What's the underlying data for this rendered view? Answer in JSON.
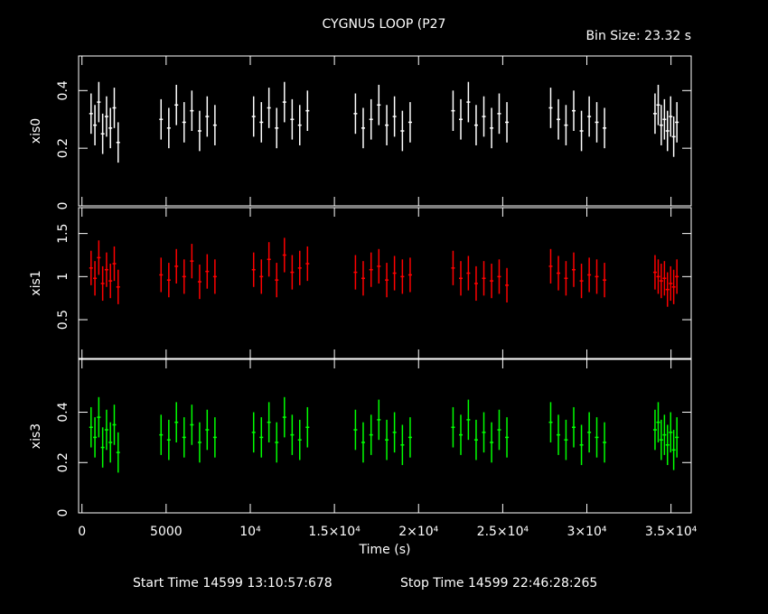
{
  "chart_data": {
    "type": "errorbar",
    "title": "CYGNUS LOOP (P27",
    "annotation": "Bin Size: 23.32 s",
    "xlabel": "Time (s)",
    "start_time": "Start Time 14599 13:10:57:678",
    "stop_time": "Stop Time 14599 22:46:28:265",
    "xlim": [
      -200,
      36200
    ],
    "xticks": [
      0,
      5000,
      {
        "value": 10000,
        "label": "10⁴"
      },
      {
        "value": 15000,
        "label": "1.5×10⁴"
      },
      {
        "value": 20000,
        "label": "2×10⁴"
      },
      {
        "value": 25000,
        "label": "2.5×10⁴"
      },
      {
        "value": 30000,
        "label": "3×10⁴"
      },
      {
        "value": 35000,
        "label": "3.5×10⁴"
      }
    ],
    "x": [
      540,
      770,
      1000,
      1230,
      1460,
      1690,
      1920,
      2150,
      4700,
      5160,
      5610,
      6070,
      6530,
      6990,
      7440,
      7900,
      10200,
      10660,
      11110,
      11570,
      12030,
      12490,
      12940,
      13400,
      16250,
      16710,
      17180,
      17640,
      18110,
      18570,
      19040,
      19500,
      22050,
      22510,
      22960,
      23420,
      23880,
      24340,
      24790,
      25250,
      27850,
      28310,
      28760,
      29220,
      29680,
      30140,
      30590,
      31050,
      34050,
      34240,
      34420,
      34610,
      34790,
      34980,
      35160,
      35350
    ],
    "panels": [
      {
        "ylabel": "xis0",
        "color": "#ffffff",
        "ylim": [
          0,
          0.52
        ],
        "yticks": [
          0,
          0.2,
          0.4
        ],
        "error": 0.07,
        "values": [
          0.32,
          0.28,
          0.36,
          0.25,
          0.31,
          0.27,
          0.34,
          0.22,
          0.3,
          0.27,
          0.35,
          0.29,
          0.33,
          0.26,
          0.31,
          0.28,
          0.31,
          0.29,
          0.34,
          0.27,
          0.36,
          0.3,
          0.28,
          0.33,
          0.32,
          0.27,
          0.3,
          0.35,
          0.28,
          0.31,
          0.26,
          0.29,
          0.33,
          0.3,
          0.36,
          0.28,
          0.31,
          0.27,
          0.32,
          0.29,
          0.34,
          0.3,
          0.28,
          0.33,
          0.26,
          0.31,
          0.29,
          0.27,
          0.32,
          0.35,
          0.28,
          0.3,
          0.26,
          0.31,
          0.24,
          0.29
        ]
      },
      {
        "ylabel": "xis1",
        "color": "#ff0000",
        "ylim": [
          0.05,
          1.8
        ],
        "yticks": [
          0.5,
          1,
          1.5
        ],
        "error": 0.2,
        "values": [
          1.1,
          0.98,
          1.22,
          0.92,
          1.08,
          0.95,
          1.15,
          0.88,
          1.02,
          0.96,
          1.12,
          1.0,
          1.18,
          0.94,
          1.06,
          1.0,
          1.08,
          1.0,
          1.2,
          0.96,
          1.25,
          1.05,
          1.1,
          1.15,
          1.05,
          0.98,
          1.08,
          1.12,
          0.96,
          1.04,
          1.0,
          1.02,
          1.1,
          0.98,
          1.04,
          0.92,
          0.98,
          0.95,
          1.0,
          0.9,
          1.12,
          1.04,
          0.98,
          1.08,
          0.95,
          1.02,
          1.0,
          0.96,
          1.05,
          1.0,
          0.95,
          0.98,
          0.85,
          0.92,
          0.88,
          1.0
        ]
      },
      {
        "ylabel": "xis3",
        "color": "#00ff00",
        "ylim": [
          0,
          0.61
        ],
        "yticks": [
          0,
          0.2,
          0.4
        ],
        "error": 0.08,
        "values": [
          0.34,
          0.3,
          0.38,
          0.26,
          0.33,
          0.28,
          0.35,
          0.24,
          0.31,
          0.29,
          0.36,
          0.3,
          0.35,
          0.28,
          0.33,
          0.3,
          0.32,
          0.3,
          0.36,
          0.28,
          0.38,
          0.31,
          0.29,
          0.34,
          0.33,
          0.28,
          0.31,
          0.37,
          0.29,
          0.32,
          0.27,
          0.3,
          0.34,
          0.31,
          0.37,
          0.29,
          0.32,
          0.28,
          0.33,
          0.3,
          0.36,
          0.31,
          0.29,
          0.34,
          0.27,
          0.32,
          0.3,
          0.28,
          0.33,
          0.36,
          0.29,
          0.31,
          0.27,
          0.32,
          0.25,
          0.3
        ]
      }
    ]
  }
}
